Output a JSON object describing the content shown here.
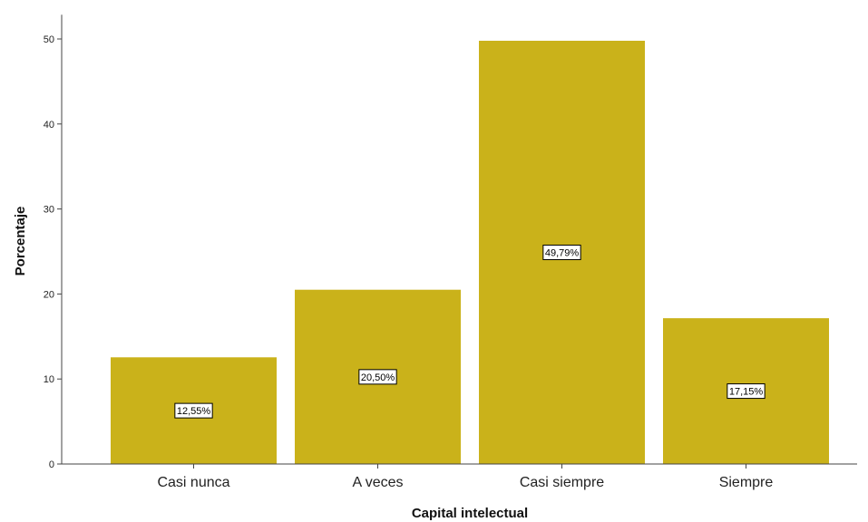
{
  "chart_data": {
    "type": "bar",
    "categories": [
      "Casi nunca",
      "A veces",
      "Casi siempre",
      "Siempre"
    ],
    "values": [
      12.55,
      20.5,
      49.79,
      17.15
    ],
    "data_labels": [
      "12,55%",
      "20,50%",
      "49,79%",
      "17,15%"
    ],
    "title": "",
    "xlabel": "Capital intelectual",
    "ylabel": "Porcentaje",
    "ylim": [
      0,
      52
    ],
    "yticks": [
      0,
      10,
      20,
      30,
      40,
      50
    ],
    "bar_color": "#cab21a",
    "grid": false,
    "legend": "none"
  }
}
